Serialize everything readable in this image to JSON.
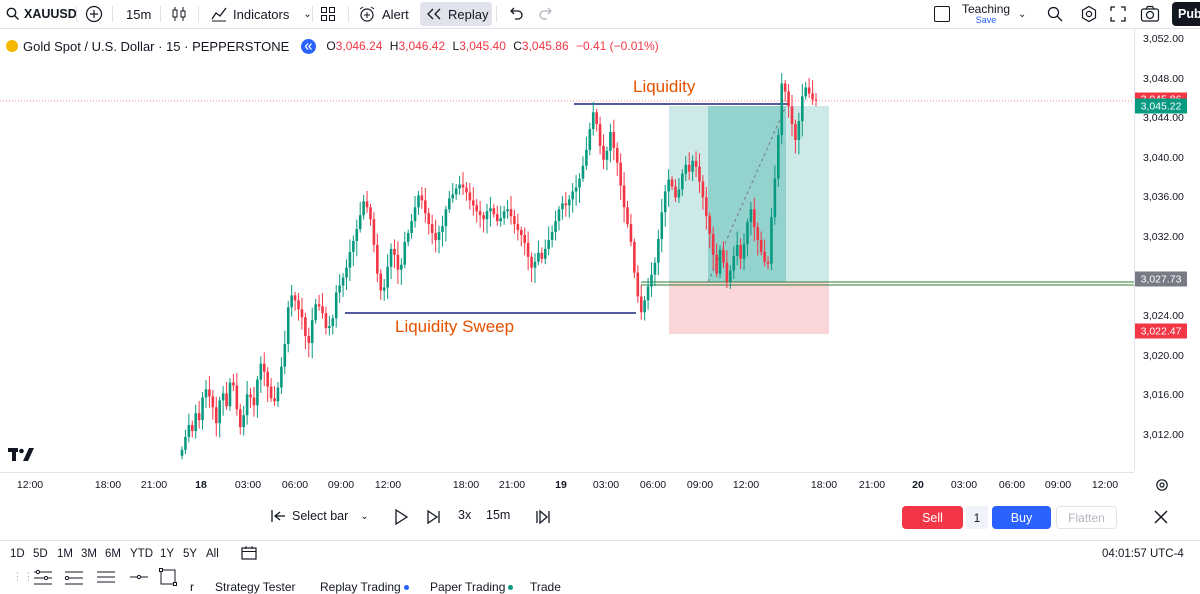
{
  "toolbar": {
    "symbol": "XAUUSD",
    "interval": "15m",
    "indicators_label": "Indicators",
    "alert_label": "Alert",
    "replay_label": "Replay",
    "layout_name": "Teaching",
    "save_label": "Save",
    "publish_label": "Pub"
  },
  "legend": {
    "title": "Gold Spot / U.S. Dollar · 15 · PEPPERSTONE",
    "o_label": "O",
    "o_val": "3,046.24",
    "h_label": "H",
    "h_val": "3,046.42",
    "l_label": "L",
    "l_val": "3,045.40",
    "c_label": "C",
    "c_val": "3,045.86",
    "change": "−0.41 (−0.01%)"
  },
  "annotations": {
    "liquidity": "Liquidity",
    "liquidity_sweep": "Liquidity Sweep"
  },
  "price_axis": {
    "ticks": [
      "3,052.00",
      "3,048.00",
      "3,044.00",
      "3,040.00",
      "3,036.00",
      "3,032.00",
      "3,028.00",
      "3,024.00",
      "3,020.00",
      "3,016.00",
      "3,012.00"
    ],
    "tags": [
      {
        "label": "3,045.86",
        "color": "#f23645"
      },
      {
        "label": "3,045.22",
        "color": "#089981"
      },
      {
        "label": "3,027.73",
        "color": "#787b86"
      },
      {
        "label": "3,022.47",
        "color": "#f23645"
      }
    ]
  },
  "time_axis": {
    "ticks": [
      {
        "label": "12:00",
        "bold": false
      },
      {
        "label": "18:00",
        "bold": false
      },
      {
        "label": "21:00",
        "bold": false
      },
      {
        "label": "18",
        "bold": true
      },
      {
        "label": "03:00",
        "bold": false
      },
      {
        "label": "06:00",
        "bold": false
      },
      {
        "label": "09:00",
        "bold": false
      },
      {
        "label": "12:00",
        "bold": false
      },
      {
        "label": "18:00",
        "bold": false
      },
      {
        "label": "21:00",
        "bold": false
      },
      {
        "label": "19",
        "bold": true
      },
      {
        "label": "03:00",
        "bold": false
      },
      {
        "label": "06:00",
        "bold": false
      },
      {
        "label": "09:00",
        "bold": false
      },
      {
        "label": "12:00",
        "bold": false
      },
      {
        "label": "18:00",
        "bold": false
      },
      {
        "label": "21:00",
        "bold": false
      },
      {
        "label": "20",
        "bold": true
      },
      {
        "label": "03:00",
        "bold": false
      },
      {
        "label": "06:00",
        "bold": false
      },
      {
        "label": "09:00",
        "bold": false
      },
      {
        "label": "12:00",
        "bold": false
      }
    ]
  },
  "replay": {
    "select_bar": "Select bar",
    "speed": "3x",
    "interval": "15m"
  },
  "trade": {
    "sell": "Sell",
    "qty": "1",
    "buy": "Buy",
    "flatten": "Flatten"
  },
  "ranges": [
    "1D",
    "5D",
    "1M",
    "3M",
    "6M",
    "YTD",
    "1Y",
    "5Y",
    "All"
  ],
  "clock": "04:01:57 UTC-4",
  "tabs": [
    {
      "label": "r",
      "dot": ""
    },
    {
      "label": "Strategy Tester",
      "dot": ""
    },
    {
      "label": "Replay Trading",
      "dot": "#2962ff"
    },
    {
      "label": "Paper Trading",
      "dot": "#089981"
    },
    {
      "label": "Trade",
      "dot": ""
    }
  ],
  "colors": {
    "up": "#089981",
    "down": "#f23645",
    "profit_zone": "#b2dfdb",
    "loss_zone": "#f8d7da",
    "level_line": "#1a237e",
    "annotation": "#e65100"
  },
  "chart_data": {
    "type": "candlestick",
    "symbol": "XAUUSD",
    "ylim": [
      3010,
      3053
    ],
    "last_price": 3045.86,
    "levels": {
      "liquidity": 3046.6,
      "liquidity_sweep": 3024.4,
      "entry": 3027.73,
      "take_profit": 3045.22,
      "stop_loss": 3022.47
    },
    "closes": [
      3010.5,
      3011.8,
      3013.0,
      3012.4,
      3014.2,
      3013.5,
      3015.8,
      3016.6,
      3015.9,
      3014.8,
      3013.2,
      3015.5,
      3016.2,
      3014.9,
      3017.3,
      3017.0,
      3014.6,
      3012.8,
      3014.0,
      3016.1,
      3015.8,
      3015.0,
      3017.6,
      3019.2,
      3018.4,
      3016.9,
      3015.7,
      3015.4,
      3016.8,
      3018.9,
      3021.2,
      3024.9,
      3026.1,
      3025.6,
      3024.7,
      3023.9,
      3022.0,
      3021.3,
      3023.6,
      3025.2,
      3025.0,
      3024.3,
      3022.8,
      3023.0,
      3023.8,
      3026.4,
      3027.1,
      3027.9,
      3028.9,
      3030.5,
      3031.6,
      3032.8,
      3034.2,
      3035.6,
      3035.0,
      3033.8,
      3031.2,
      3028.3,
      3026.6,
      3026.9,
      3029.0,
      3030.8,
      3030.2,
      3028.7,
      3029.2,
      3031.5,
      3032.4,
      3033.6,
      3035.0,
      3036.2,
      3035.7,
      3034.4,
      3033.3,
      3032.4,
      3031.7,
      3032.5,
      3033.1,
      3034.8,
      3035.9,
      3036.3,
      3036.9,
      3037.3,
      3037.0,
      3036.5,
      3035.7,
      3035.2,
      3034.6,
      3034.2,
      3033.8,
      3034.6,
      3034.9,
      3034.3,
      3033.6,
      3033.9,
      3034.6,
      3034.8,
      3034.1,
      3033.3,
      3032.7,
      3032.2,
      3031.4,
      3030.0,
      3028.9,
      3029.5,
      3030.4,
      3029.8,
      3030.8,
      3031.7,
      3032.5,
      3033.6,
      3034.8,
      3035.4,
      3035.2,
      3035.8,
      3036.6,
      3037.0,
      3037.9,
      3039.2,
      3040.8,
      3042.9,
      3044.6,
      3043.4,
      3041.2,
      3039.8,
      3040.7,
      3042.6,
      3041.0,
      3039.5,
      3037.2,
      3035.0,
      3033.3,
      3031.5,
      3028.4,
      3026.0,
      3024.4,
      3025.6,
      3027.0,
      3028.2,
      3029.4,
      3031.8,
      3034.5,
      3036.6,
      3037.8,
      3037.1,
      3036.0,
      3036.8,
      3038.4,
      3039.3,
      3038.6,
      3039.7,
      3039.1,
      3037.6,
      3036.0,
      3034.1,
      3032.3,
      3030.2,
      3028.3,
      3030.7,
      3029.4,
      3027.5,
      3028.6,
      3030.1,
      3031.2,
      3029.8,
      3031.3,
      3033.5,
      3034.8,
      3033.0,
      3031.7,
      3030.5,
      3029.5,
      3029.3,
      3034.0,
      3037.9,
      3042.3,
      3047.5,
      3046.7,
      3045.2,
      3043.4,
      3041.8,
      3043.7,
      3046.2,
      3047.1,
      3046.5,
      3045.9,
      3045.86
    ]
  }
}
